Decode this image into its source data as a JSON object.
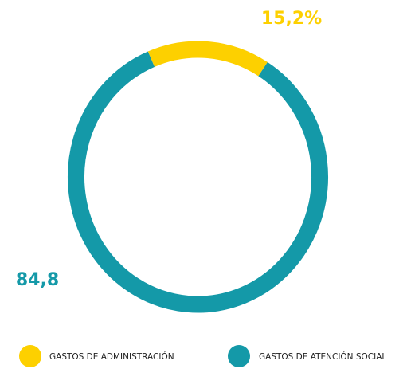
{
  "chart_data": {
    "type": "donut",
    "categories": [
      "GASTOS DE ADMINISTRACIÓN",
      "GASTOS DE ATENCIÓN SOCIAL"
    ],
    "values": [
      15.2,
      84.8
    ],
    "value_labels": [
      "15,2%",
      "84,8"
    ],
    "colors": [
      "#fdd000",
      "#1499a8"
    ]
  }
}
